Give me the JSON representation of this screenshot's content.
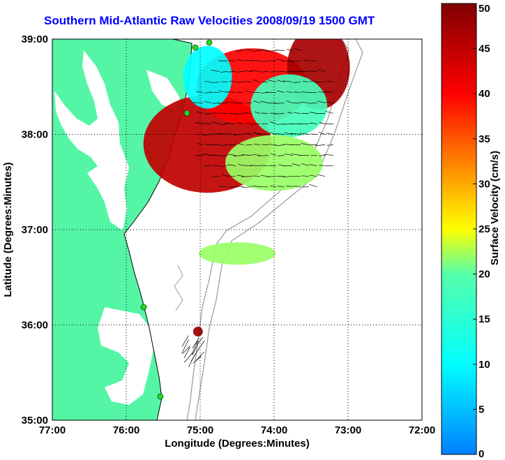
{
  "chart_data": {
    "type": "heatmap",
    "title": "Southern Mid-Atlantic Raw Velocities 2008/09/19 1500 GMT",
    "xlabel": "Longitude (Degrees:Minutes)",
    "ylabel": "Latitude (Degrees:Minutes)",
    "x_ticks": [
      "77:00",
      "76:00",
      "75:00",
      "74:00",
      "73:00",
      "72:00"
    ],
    "y_ticks": [
      "39:00",
      "38:00",
      "37:00",
      "36:00",
      "35:00"
    ],
    "xlim": [
      -77,
      -72
    ],
    "ylim": [
      35,
      39
    ],
    "grid": true,
    "colorbar": {
      "label": "Surface Velocity (cm/s)",
      "ticks": [
        "50",
        "45",
        "40",
        "35",
        "30",
        "25",
        "20",
        "15",
        "10",
        "5",
        "0"
      ],
      "range": [
        0,
        50
      ]
    },
    "colors": {
      "land": "#55f5a6",
      "title": "#0000ff"
    },
    "regions": [
      {
        "lat": 37.9,
        "lon": -74.9,
        "velocity": 45
      },
      {
        "lat": 38.5,
        "lon": -74.3,
        "velocity": 40
      },
      {
        "lat": 38.7,
        "lon": -73.4,
        "velocity": 47
      },
      {
        "lat": 38.3,
        "lon": -73.8,
        "velocity": 18
      },
      {
        "lat": 37.7,
        "lon": -74.0,
        "velocity": 22
      },
      {
        "lat": 38.6,
        "lon": -74.9,
        "velocity": 10
      },
      {
        "lat": 36.75,
        "lon": -74.5,
        "velocity": 22
      },
      {
        "lat": 35.93,
        "lon": -75.03,
        "velocity": 48
      }
    ]
  }
}
